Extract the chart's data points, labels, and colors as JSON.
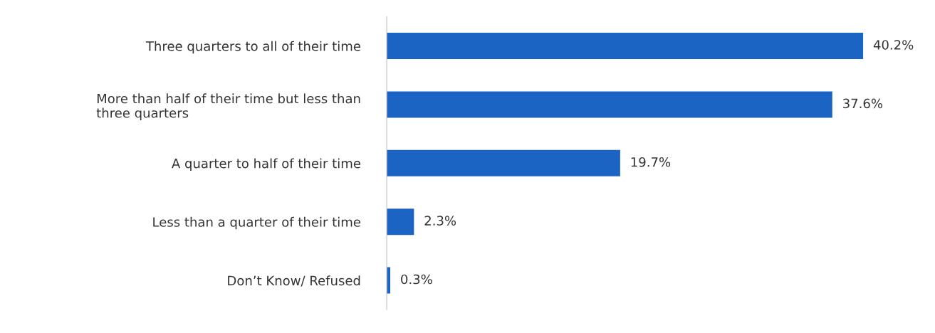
{
  "chart_data": {
    "type": "bar",
    "orientation": "horizontal",
    "categories": [
      "Three quarters to all of their time",
      "More than half of their time but less than\nthree quarters",
      "A quarter to half of their time",
      "Less than a quarter of their time",
      "Don’t Know/ Refused"
    ],
    "values": [
      40.2,
      37.6,
      19.7,
      2.3,
      0.3
    ],
    "value_labels": [
      "40.2%",
      "37.6%",
      "19.7%",
      "2.3%",
      "0.3%"
    ],
    "color": "#1c64c4",
    "tick_labels": "y"
  }
}
